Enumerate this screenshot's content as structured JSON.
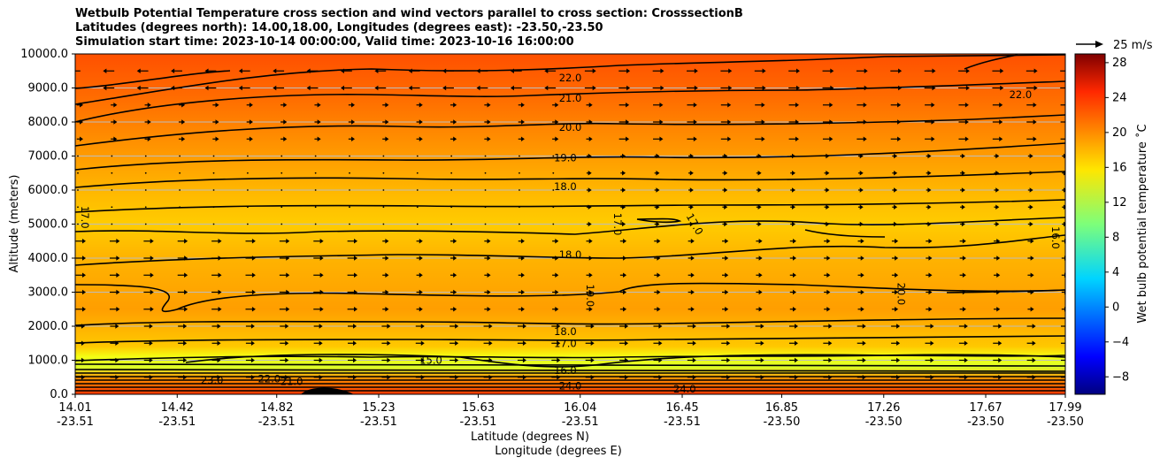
{
  "chart_data": {
    "type": "contour",
    "title_lines": [
      "Wetbulb Potential Temperature cross section and wind vectors parallel to cross section: CrosssectionB",
      "Latitudes (degrees north): 14.00,18.00, Longitudes (degrees east): -23.50,-23.50",
      "Simulation start time: 2023-10-14 00:00:00, Valid time: 2023-10-16 16:00:00"
    ],
    "ylabel": "Altitude (meters)",
    "xlabel_lat": "Latitude (degrees N)",
    "xlabel_lon": "Longitude (degrees E)",
    "xlim": [
      14.01,
      17.99
    ],
    "ylim": [
      0,
      10000
    ],
    "yticks": [
      0,
      1000,
      2000,
      3000,
      4000,
      5000,
      6000,
      7000,
      8000,
      9000,
      10000
    ],
    "ytick_labels": [
      "0.0",
      "1000.0",
      "2000.0",
      "3000.0",
      "4000.0",
      "5000.0",
      "6000.0",
      "7000.0",
      "8000.0",
      "9000.0",
      "10000.0"
    ],
    "xticks": [
      {
        "lat": 14.01,
        "lat_label": "14.01",
        "lon_label": "-23.51"
      },
      {
        "lat": 14.42,
        "lat_label": "14.42",
        "lon_label": "-23.51"
      },
      {
        "lat": 14.82,
        "lat_label": "14.82",
        "lon_label": "-23.51"
      },
      {
        "lat": 15.23,
        "lat_label": "15.23",
        "lon_label": "-23.51"
      },
      {
        "lat": 15.63,
        "lat_label": "15.63",
        "lon_label": "-23.51"
      },
      {
        "lat": 16.04,
        "lat_label": "16.04",
        "lon_label": "-23.51"
      },
      {
        "lat": 16.45,
        "lat_label": "16.45",
        "lon_label": "-23.51"
      },
      {
        "lat": 16.85,
        "lat_label": "16.85",
        "lon_label": "-23.50"
      },
      {
        "lat": 17.26,
        "lat_label": "17.26",
        "lon_label": "-23.50"
      },
      {
        "lat": 17.67,
        "lat_label": "17.67",
        "lon_label": "-23.50"
      },
      {
        "lat": 17.99,
        "lat_label": "17.99",
        "lon_label": "-23.50"
      }
    ],
    "colorbar": {
      "label": "Wet bulb potential temperature $^\\circ$C",
      "label_text": "Wet bulb potential temperature ˚C",
      "range": [
        -10,
        29
      ],
      "ticks": [
        -8,
        -4,
        0,
        4,
        8,
        12,
        16,
        20,
        24,
        28
      ],
      "tick_labels": [
        "−8",
        "−4",
        "0",
        "4",
        "8",
        "12",
        "16",
        "20",
        "24",
        "28"
      ]
    },
    "quiver_key": {
      "label": "25 m/s",
      "speed": 25
    },
    "contours": [
      {
        "value": 22.0,
        "label": "22.0",
        "lat": 16.0,
        "alt": 9300
      },
      {
        "value": 21.0,
        "label": "21.0",
        "lat": 16.0,
        "alt": 8700
      },
      {
        "value": 20.0,
        "label": "20.0",
        "lat": 16.0,
        "alt": 7850
      },
      {
        "value": 19.0,
        "label": "19.0",
        "lat": 15.98,
        "alt": 6950
      },
      {
        "value": 18.0,
        "label": "18.0",
        "lat": 15.98,
        "alt": 6100
      },
      {
        "value": 18.0,
        "label": "18.0",
        "lat": 16.0,
        "alt": 4100
      },
      {
        "value": 19.0,
        "label": "19.0",
        "lat": 16.08,
        "alt": 2900
      },
      {
        "value": 18.0,
        "label": "18.0",
        "lat": 15.98,
        "alt": 1850
      },
      {
        "value": 17.0,
        "label": "17.0",
        "lat": 15.98,
        "alt": 1500
      },
      {
        "value": 15.0,
        "label": "15.0",
        "lat": 15.44,
        "alt": 1000
      },
      {
        "value": 17.0,
        "label": "17.0",
        "lat": 14.05,
        "alt": 5200
      },
      {
        "value": 17.0,
        "label": "17.0",
        "lat": 16.19,
        "alt": 5000
      },
      {
        "value": 17.0,
        "label": "17.0",
        "lat": 16.5,
        "alt": 5000
      },
      {
        "value": 16.0,
        "label": "16.0",
        "lat": 17.95,
        "alt": 4600
      },
      {
        "value": 20.0,
        "label": "20.0",
        "lat": 17.33,
        "alt": 2950
      },
      {
        "value": 22.0,
        "label": "22.0",
        "lat": 17.81,
        "alt": 8800
      },
      {
        "value": 23.0,
        "label": "23.0",
        "lat": 14.56,
        "alt": 420
      },
      {
        "value": 22.0,
        "label": "22.0",
        "lat": 14.79,
        "alt": 450
      },
      {
        "value": 21.0,
        "label": "21.0",
        "lat": 14.88,
        "alt": 380
      },
      {
        "value": 24.0,
        "label": "24.0",
        "lat": 16.0,
        "alt": 250
      },
      {
        "value": 24.0,
        "label": "24.0",
        "lat": 16.46,
        "alt": 150
      },
      {
        "value": 16.0,
        "label": "16.0",
        "lat": 15.98,
        "alt": 700
      }
    ],
    "wind_rows_alt": [
      9500,
      9000,
      8500,
      8000,
      7500,
      7000,
      6500,
      6000,
      5500,
      5000,
      4500,
      4000,
      3500,
      3000,
      2500,
      2000,
      1500,
      1000,
      500
    ]
  }
}
